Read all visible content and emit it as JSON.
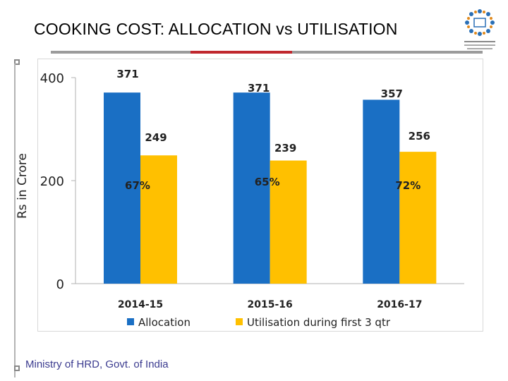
{
  "title": "COOKING COST: ALLOCATION vs UTILISATION",
  "footer": "Ministry of HRD, Govt. of India",
  "colors": {
    "allocation": "#1a6fc4",
    "utilisation": "#ffc000",
    "accent_rule": "#c0282e"
  },
  "logo": {
    "icon": "ministry-logo-icon",
    "caption": "सबका साथ सबका विकास"
  },
  "chart_data": {
    "type": "bar",
    "ylabel": "Rs in Crore",
    "ylim": [
      0,
      400
    ],
    "yticks": [
      "0",
      "200",
      "400"
    ],
    "categories": [
      "2014-15",
      "2015-16",
      "2016-17"
    ],
    "series": [
      {
        "name": "Allocation",
        "values": [
          371,
          371,
          357
        ],
        "labels": [
          "371",
          "371",
          "357"
        ]
      },
      {
        "name": "Utilisation during first 3 qtr",
        "values": [
          249,
          239,
          256
        ],
        "labels": [
          "249",
          "239",
          "256"
        ]
      }
    ],
    "percent_labels": [
      "67%",
      "65%",
      "72%"
    ],
    "legend_position": "bottom",
    "grid": false
  }
}
